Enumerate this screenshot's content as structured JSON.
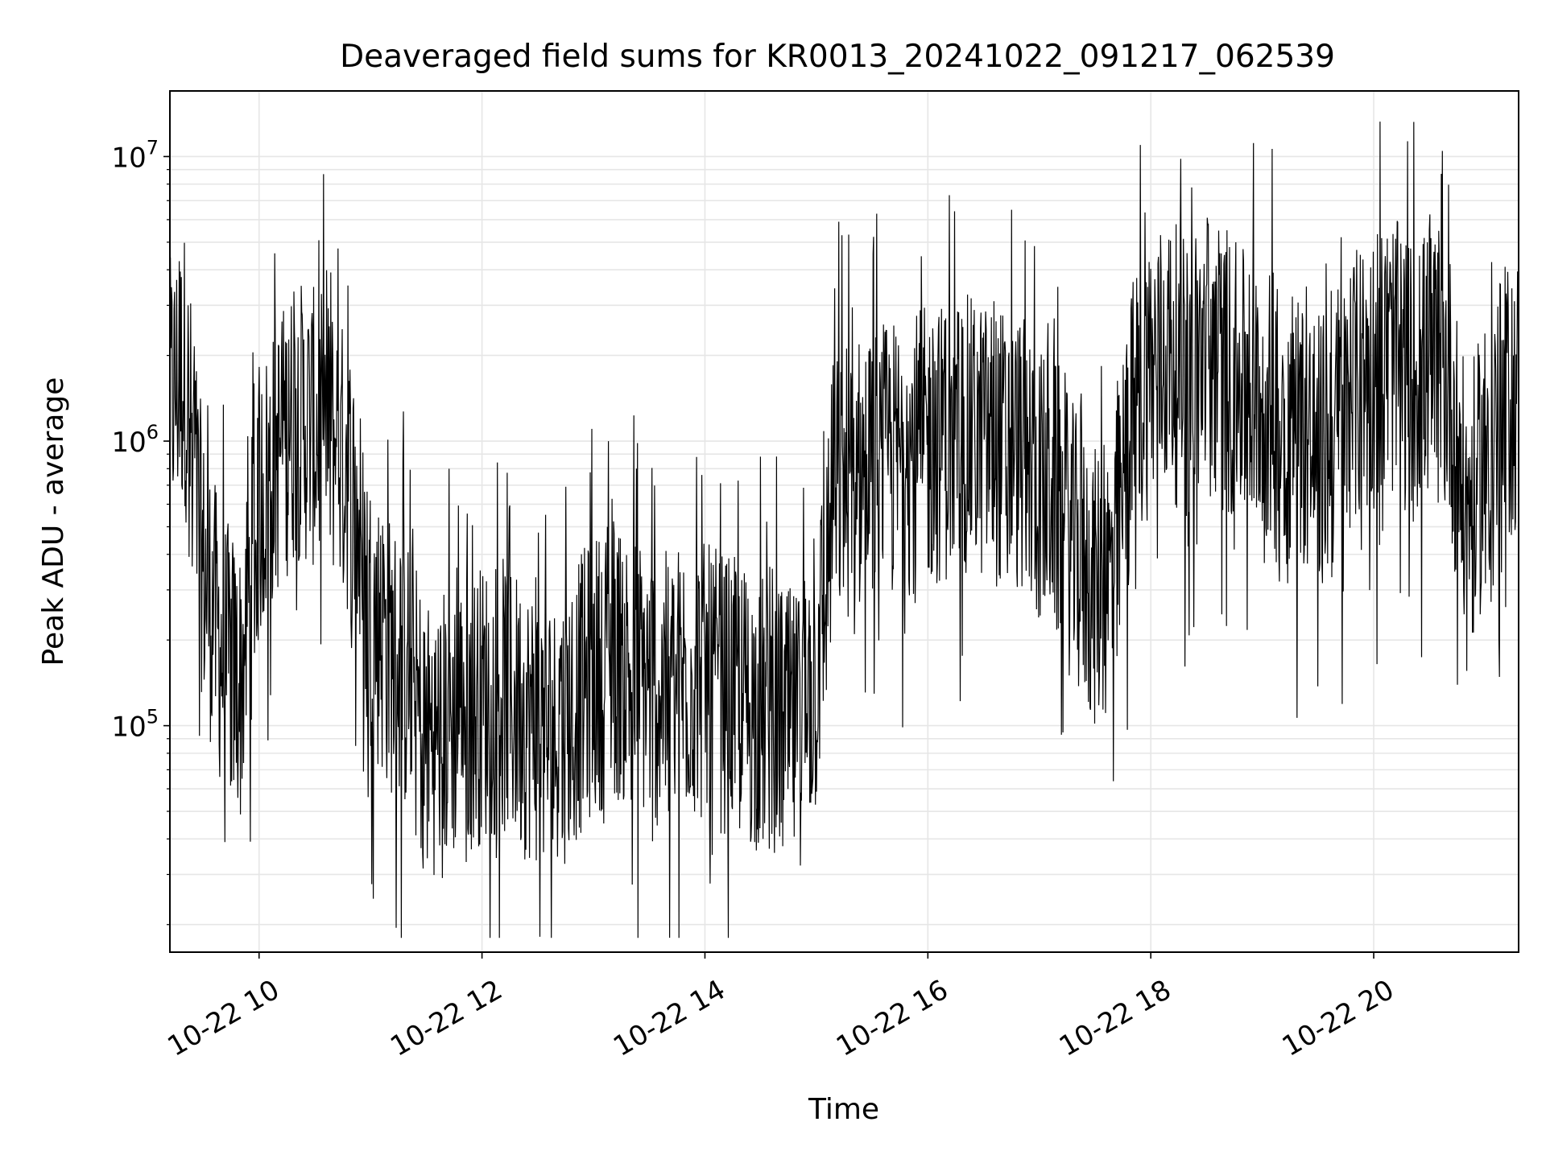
{
  "chart_data": {
    "type": "line",
    "title": "Deaveraged field sums for KR0013_20241022_091217_062539",
    "xlabel": "Time",
    "ylabel": "Peak ADU - average",
    "yscale": "log",
    "ylim": [
      16000,
      17000000
    ],
    "xlim": [
      "2024-10-22 09:12",
      "2024-10-22 21:18"
    ],
    "x_ticks": [
      {
        "x": "2024-10-22 10:00",
        "label": "10-22 10"
      },
      {
        "x": "2024-10-22 12:00",
        "label": "10-22 12"
      },
      {
        "x": "2024-10-22 14:00",
        "label": "10-22 14"
      },
      {
        "x": "2024-10-22 16:00",
        "label": "10-22 16"
      },
      {
        "x": "2024-10-22 18:00",
        "label": "10-22 18"
      },
      {
        "x": "2024-10-22 20:00",
        "label": "10-22 20"
      }
    ],
    "y_ticks": [
      {
        "value": 100000,
        "mantissa": "10",
        "exponent": "5"
      },
      {
        "value": 1000000,
        "mantissa": "10",
        "exponent": "6"
      },
      {
        "value": 10000000,
        "mantissa": "10",
        "exponent": "7"
      }
    ],
    "grid": true,
    "line_color": "#000000",
    "series": [
      {
        "x": [
          "2024-10-22 09:12",
          "2024-10-22 09:20",
          "2024-10-22 09:30",
          "2024-10-22 09:40",
          "2024-10-22 09:50",
          "2024-10-22 10:00",
          "2024-10-22 10:10",
          "2024-10-22 10:20",
          "2024-10-22 10:30",
          "2024-10-22 10:40",
          "2024-10-22 10:50",
          "2024-10-22 11:00",
          "2024-10-22 11:10",
          "2024-10-22 11:20",
          "2024-10-22 11:30",
          "2024-10-22 11:40",
          "2024-10-22 11:50",
          "2024-10-22 12:00",
          "2024-10-22 12:10",
          "2024-10-22 12:20",
          "2024-10-22 12:30",
          "2024-10-22 12:40",
          "2024-10-22 12:50",
          "2024-10-22 13:00",
          "2024-10-22 13:10",
          "2024-10-22 13:20",
          "2024-10-22 13:30",
          "2024-10-22 13:40",
          "2024-10-22 13:50",
          "2024-10-22 14:00",
          "2024-10-22 14:10",
          "2024-10-22 14:20",
          "2024-10-22 14:30",
          "2024-10-22 14:40",
          "2024-10-22 14:50",
          "2024-10-22 15:00",
          "2024-10-22 15:10",
          "2024-10-22 15:20",
          "2024-10-22 15:30",
          "2024-10-22 15:40",
          "2024-10-22 15:50",
          "2024-10-22 16:00",
          "2024-10-22 16:10",
          "2024-10-22 16:20",
          "2024-10-22 16:30",
          "2024-10-22 16:40",
          "2024-10-22 16:50",
          "2024-10-22 17:00",
          "2024-10-22 17:10",
          "2024-10-22 17:20",
          "2024-10-22 17:30",
          "2024-10-22 17:40",
          "2024-10-22 17:50",
          "2024-10-22 18:00",
          "2024-10-22 18:10",
          "2024-10-22 18:20",
          "2024-10-22 18:30",
          "2024-10-22 18:40",
          "2024-10-22 18:50",
          "2024-10-22 19:00",
          "2024-10-22 19:10",
          "2024-10-22 19:20",
          "2024-10-22 19:30",
          "2024-10-22 19:40",
          "2024-10-22 19:50",
          "2024-10-22 20:00",
          "2024-10-22 20:10",
          "2024-10-22 20:20",
          "2024-10-22 20:30",
          "2024-10-22 20:40",
          "2024-10-22 20:50",
          "2024-10-22 21:00",
          "2024-10-22 21:10",
          "2024-10-22 21:18"
        ],
        "y": [
          1400000,
          1800000,
          350000,
          180000,
          140000,
          600000,
          900000,
          1200000,
          1100000,
          1000000,
          700000,
          250000,
          180000,
          150000,
          90000,
          100000,
          110000,
          120000,
          130000,
          110000,
          100000,
          90000,
          120000,
          150000,
          170000,
          160000,
          140000,
          130000,
          150000,
          140000,
          130000,
          120000,
          110000,
          100000,
          95000,
          150000,
          700000,
          750000,
          800000,
          850000,
          900000,
          950000,
          1000000,
          1050000,
          1000000,
          950000,
          900000,
          700000,
          600000,
          400000,
          300000,
          350000,
          1200000,
          1800000,
          2000000,
          1600000,
          2200000,
          1700000,
          1500000,
          1400000,
          1100000,
          1200000,
          900000,
          1000000,
          1500000,
          1800000,
          2000000,
          1600000,
          1900000,
          1700000,
          500000,
          900000,
          1300000,
          1500000
        ]
      }
    ]
  }
}
